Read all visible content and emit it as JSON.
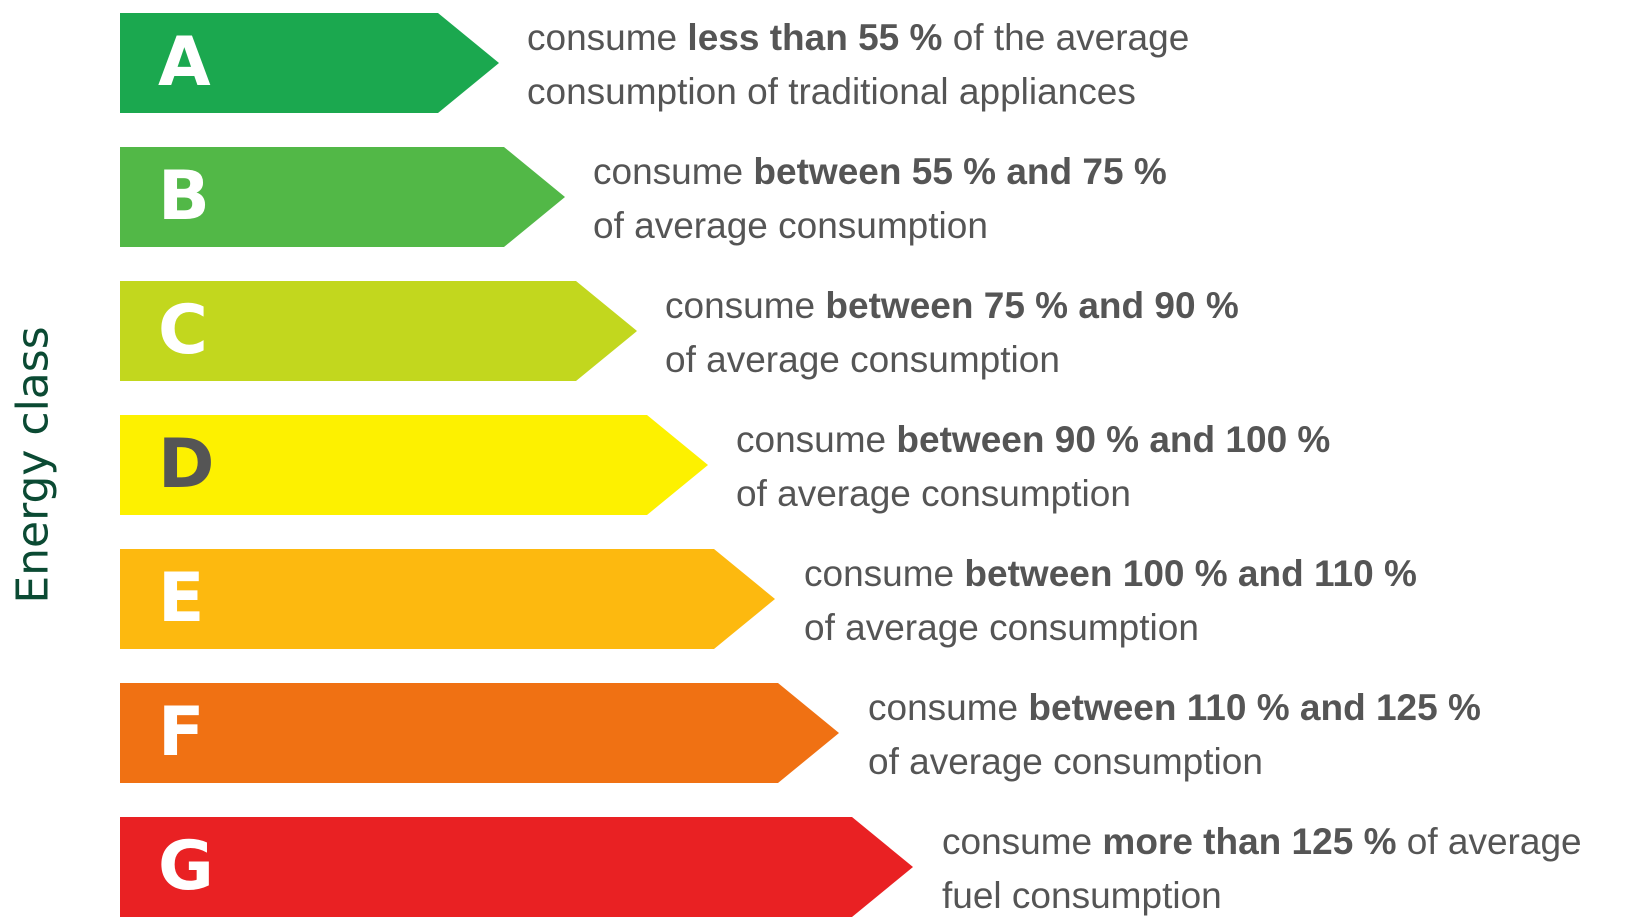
{
  "axis_title": "Energy class",
  "classes": [
    {
      "letter": "A",
      "color": "#1ba84f",
      "letter_color": "#ffffff",
      "line1_pre": "consume ",
      "line1_bold": "less than 55 %",
      "line1_post": " of the average",
      "line2": "consumption of traditional appliances"
    },
    {
      "letter": "B",
      "color": "#52b847",
      "letter_color": "#ffffff",
      "line1_pre": "consume ",
      "line1_bold": "between 55 % and 75 %",
      "line1_post": "",
      "line2": "of average consumption"
    },
    {
      "letter": "C",
      "color": "#c2d71e",
      "letter_color": "#ffffff",
      "line1_pre": "consume ",
      "line1_bold": "between 75 % and 90 %",
      "line1_post": "",
      "line2": "of average consumption"
    },
    {
      "letter": "D",
      "color": "#fdf100",
      "letter_color": "#555555",
      "line1_pre": "consume ",
      "line1_bold": "between 90 % and 100 %",
      "line1_post": "",
      "line2": "of average consumption"
    },
    {
      "letter": "E",
      "color": "#fdb90f",
      "letter_color": "#ffffff",
      "line1_pre": "consume ",
      "line1_bold": "between 100 % and 110 %",
      "line1_post": "",
      "line2": "of average consumption"
    },
    {
      "letter": "F",
      "color": "#f07113",
      "letter_color": "#ffffff",
      "line1_pre": "consume ",
      "line1_bold": "between 110 % and 125 %",
      "line1_post": "",
      "line2": "of average consumption"
    },
    {
      "letter": "G",
      "color": "#e92123",
      "letter_color": "#ffffff",
      "line1_pre": "consume ",
      "line1_bold": "more than 125 %",
      "line1_post": " of average",
      "line2": "fuel consumption"
    }
  ]
}
